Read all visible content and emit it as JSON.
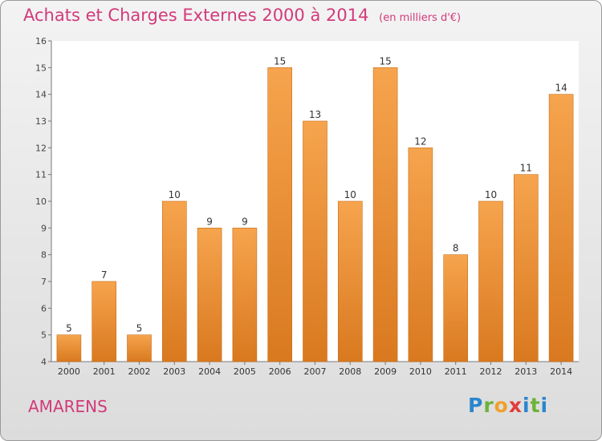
{
  "header": {
    "title": "Achats et Charges Externes 2000 à 2014",
    "unit": "(en milliers d'€)"
  },
  "footer": {
    "commune": "AMARENS",
    "logo": "Proxiti"
  },
  "colors": {
    "bar_top": "#f6a44e",
    "bar_bottom": "#d9791f",
    "title": "#d23a7a"
  },
  "chart_data": {
    "type": "bar",
    "title": "Achats et Charges Externes 2000 à 2014",
    "subtitle": "(en milliers d'€)",
    "categories": [
      "2000",
      "2001",
      "2002",
      "2003",
      "2004",
      "2005",
      "2006",
      "2007",
      "2008",
      "2009",
      "2010",
      "2011",
      "2012",
      "2013",
      "2014"
    ],
    "values": [
      5,
      7,
      5,
      10,
      9,
      9,
      15,
      13,
      10,
      15,
      12,
      8,
      10,
      11,
      14
    ],
    "ylim": [
      4,
      16
    ],
    "yticks": [
      4,
      5,
      6,
      7,
      8,
      9,
      10,
      11,
      12,
      13,
      14,
      15,
      16
    ],
    "grid": false
  }
}
